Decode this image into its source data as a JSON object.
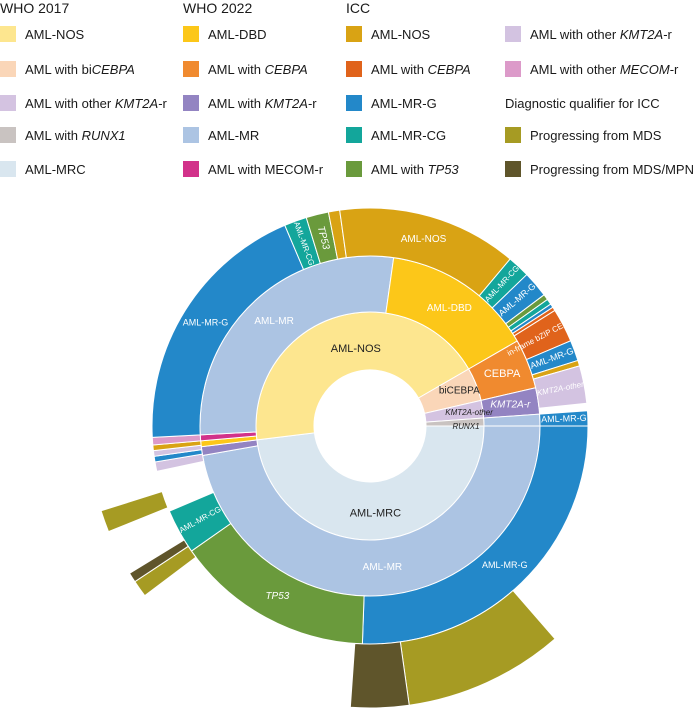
{
  "legend": {
    "who2017": {
      "title": "WHO 2017",
      "items": [
        {
          "pre": "AML-NOS",
          "it": "",
          "post": "",
          "color": "#fde68f"
        },
        {
          "pre": "AML with bi",
          "it": "CEBPA",
          "post": "",
          "color": "#fad6b8"
        },
        {
          "pre": "AML with other ",
          "it": "KMT2A",
          "post": "-r",
          "color": "#d4c3e1"
        },
        {
          "pre": "AML with ",
          "it": "RUNX1",
          "post": "",
          "color": "#c9c3c1"
        },
        {
          "pre": "AML-MRC",
          "it": "",
          "post": "",
          "color": "#d9e6ef"
        }
      ]
    },
    "who2022": {
      "title": "WHO 2022",
      "items": [
        {
          "pre": "AML-DBD",
          "it": "",
          "post": "",
          "color": "#fcc719"
        },
        {
          "pre": "AML with ",
          "it": "CEBPA",
          "post": "",
          "color": "#f08a2f"
        },
        {
          "pre": "AML with ",
          "it": "KMT2A",
          "post": "-r",
          "color": "#9384c2"
        },
        {
          "pre": "AML-MR",
          "it": "",
          "post": "",
          "color": "#acc4e3"
        },
        {
          "pre": "AML with MECOM-r",
          "it": "",
          "post": "",
          "color": "#d2328a"
        }
      ]
    },
    "icc": {
      "title": "ICC",
      "items": [
        {
          "pre": "AML-NOS",
          "it": "",
          "post": "",
          "color": "#d9a314"
        },
        {
          "pre": "AML with ",
          "it": "CEBPA",
          "post": "",
          "color": "#e0631b"
        },
        {
          "pre": "AML-MR-G",
          "it": "",
          "post": "",
          "color": "#2388c9"
        },
        {
          "pre": "AML-MR-CG",
          "it": "",
          "post": "",
          "color": "#13a69b"
        },
        {
          "pre": "AML with ",
          "it": "TP53",
          "post": "",
          "color": "#6a9a3c"
        }
      ]
    },
    "icc2": {
      "title": "",
      "items": [
        {
          "pre": "AML with other ",
          "it": "KMT2A",
          "post": "-r",
          "color": "#d3c3e1"
        },
        {
          "pre": "AML with other ",
          "it": "MECOM",
          "post": "-r",
          "color": "#dc9ac9"
        },
        {
          "pre": "Diagnostic qualifier for ICC",
          "it": "",
          "post": "",
          "color": ""
        },
        {
          "pre": "Progressing from MDS",
          "it": "",
          "post": "",
          "color": "#a69b23"
        },
        {
          "pre": "Progressing from MDS/MPN",
          "it": "",
          "post": "",
          "color": "#5f552b"
        }
      ]
    }
  },
  "chart_data": {
    "type": "sunburst",
    "direction": "clockwise from 12 o'clock, degrees",
    "rings": [
      {
        "name": "WHO 2017",
        "segments": [
          {
            "start": 90.0,
            "end": 263.0,
            "color": "#d9e6ef",
            "label": "AML-MRC",
            "label_italic": false
          },
          {
            "start": 263.0,
            "end": 420.0,
            "color": "#fde68f",
            "label": "AML-NOS",
            "label_italic": false
          },
          {
            "start": 420.0,
            "end": 437.0,
            "color": "#fad6b8",
            "label": "biCEBPA",
            "label_italic": false
          },
          {
            "start": 437.0,
            "end": 446.0,
            "color": "#d4c3e1",
            "label": "KMT2A-other",
            "label_italic": true
          },
          {
            "start": 446.0,
            "end": 450.0,
            "color": "#c9c3c1",
            "label": "RUNX1",
            "label_italic": true
          }
        ]
      },
      {
        "name": "WHO 2022",
        "segments": [
          {
            "start": 90.0,
            "end": 260.0,
            "color": "#acc4e3",
            "label": "AML-MR",
            "label_italic": false
          },
          {
            "start": 260.0,
            "end": 263.0,
            "color": "#9384c2",
            "label": "",
            "label_italic": false
          },
          {
            "start": 263.0,
            "end": 265.0,
            "color": "#fcc719",
            "label": "",
            "label_italic": false
          },
          {
            "start": 265.0,
            "end": 267.0,
            "color": "#d2328a",
            "label": "",
            "label_italic": false
          },
          {
            "start": 267.0,
            "end": 368.0,
            "color": "#acc4e3",
            "label": "AML-MR",
            "label_italic": false
          },
          {
            "start": 368.0,
            "end": 420.0,
            "color": "#fcc719",
            "label": "AML-DBD",
            "label_italic": false
          },
          {
            "start": 420.0,
            "end": 437.0,
            "color": "#f08a2f",
            "label": "CEBPA",
            "label_italic": false
          },
          {
            "start": 437.0,
            "end": 446.0,
            "color": "#9384c2",
            "label": "KMT2A-r",
            "label_italic": true
          },
          {
            "start": 446.0,
            "end": 450.0,
            "color": "#acc4e3",
            "label": "",
            "label_italic": false
          }
        ]
      },
      {
        "name": "ICC",
        "segments": [
          {
            "start": 90.0,
            "end": 182.0,
            "color": "#2388c9",
            "label": "AML-MR-G",
            "label_italic": false
          },
          {
            "start": 182.0,
            "end": 235.0,
            "color": "#6a9a3c",
            "label": "TP53",
            "label_italic": true
          },
          {
            "start": 235.0,
            "end": 247.0,
            "color": "#13a69b",
            "label": "AML-MR-CG",
            "label_italic": false
          },
          {
            "start": 247.0,
            "end": 258.0,
            "color": "#ffffff",
            "label": "",
            "label_italic": false
          },
          {
            "start": 258.0,
            "end": 260.5,
            "color": "#d3c3e1",
            "label": "",
            "label_italic": false
          },
          {
            "start": 260.5,
            "end": 262.0,
            "color": "#2388c9",
            "label": "",
            "label_italic": false
          },
          {
            "start": 262.0,
            "end": 263.5,
            "color": "#d3c3e1",
            "label": "",
            "label_italic": false
          },
          {
            "start": 263.5,
            "end": 265.0,
            "color": "#d9a314",
            "label": "",
            "label_italic": false
          },
          {
            "start": 265.0,
            "end": 267.0,
            "color": "#dc9ac9",
            "label": "",
            "label_italic": false
          },
          {
            "start": 267.0,
            "end": 337.0,
            "color": "#2388c9",
            "label": "AML-MR-G",
            "label_italic": false
          },
          {
            "start": 337.0,
            "end": 343.0,
            "color": "#13a69b",
            "label": "AML-MR-CG",
            "label_italic": false
          },
          {
            "start": 343.0,
            "end": 349.0,
            "color": "#6a9a3c",
            "label": "TP53",
            "label_italic": true
          },
          {
            "start": 349.0,
            "end": 352.0,
            "color": "#d9a314",
            "label": "",
            "label_italic": false
          },
          {
            "start": 352.0,
            "end": 400.0,
            "color": "#d9a314",
            "label": "AML-NOS",
            "label_italic": false
          },
          {
            "start": 400.0,
            "end": 406.0,
            "color": "#13a69b",
            "label": "AML-MR-CG",
            "label_italic": false
          },
          {
            "start": 406.0,
            "end": 413.0,
            "color": "#2388c9",
            "label": "AML-MR-G",
            "label_italic": false
          },
          {
            "start": 413.0,
            "end": 414.5,
            "color": "#6a9a3c",
            "label": "",
            "label_italic": false
          },
          {
            "start": 414.5,
            "end": 416.0,
            "color": "#13a69b",
            "label": "",
            "label_italic": false
          },
          {
            "start": 416.0,
            "end": 417.0,
            "color": "#2388c9",
            "label": "",
            "label_italic": false
          },
          {
            "start": 417.0,
            "end": 418.0,
            "color": "#e0631b",
            "label": "",
            "label_italic": false
          },
          {
            "start": 418.0,
            "end": 427.0,
            "color": "#e0631b",
            "label": "in-frame bZIP CEBPA",
            "label_italic": false
          },
          {
            "start": 427.0,
            "end": 432.5,
            "color": "#2388c9",
            "label": "AML-MR-G",
            "label_italic": false
          },
          {
            "start": 432.5,
            "end": 434.0,
            "color": "#d9a314",
            "label": "",
            "label_italic": false
          },
          {
            "start": 434.0,
            "end": 444.0,
            "color": "#d3c3e1",
            "label": "KMT2A-other",
            "label_italic": true
          },
          {
            "start": 444.0,
            "end": 446.0,
            "color": "#ffffff",
            "label": "",
            "label_italic": false
          },
          {
            "start": 446.0,
            "end": 450.0,
            "color": "#2388c9",
            "label": "AML-MR-G",
            "label_italic": false
          }
        ]
      },
      {
        "name": "Diagnostic qualifier for ICC",
        "segments": [
          {
            "start": 90.0,
            "end": 139.0,
            "color": "#ffffff",
            "label": "",
            "label_italic": false
          },
          {
            "start": 139.0,
            "end": 172.0,
            "color": "#a69b23",
            "label": "",
            "label_italic": false
          },
          {
            "start": 172.0,
            "end": 184.0,
            "color": "#5f552b",
            "label": "",
            "label_italic": false
          },
          {
            "start": 184.0,
            "end": 233.0,
            "color": "#ffffff",
            "label": "",
            "label_italic": false
          },
          {
            "start": 233.0,
            "end": 236.5,
            "color": "#a69b23",
            "label": "",
            "label_italic": false
          },
          {
            "start": 236.5,
            "end": 238.5,
            "color": "#5f552b",
            "label": "",
            "label_italic": false
          },
          {
            "start": 238.5,
            "end": 248.0,
            "color": "#ffffff",
            "label": "",
            "label_italic": false
          },
          {
            "start": 248.0,
            "end": 252.5,
            "color": "#a69b23",
            "label": "",
            "label_italic": false
          },
          {
            "start": 252.5,
            "end": 450.0,
            "color": "#ffffff",
            "label": "",
            "label_italic": false
          }
        ]
      }
    ]
  }
}
